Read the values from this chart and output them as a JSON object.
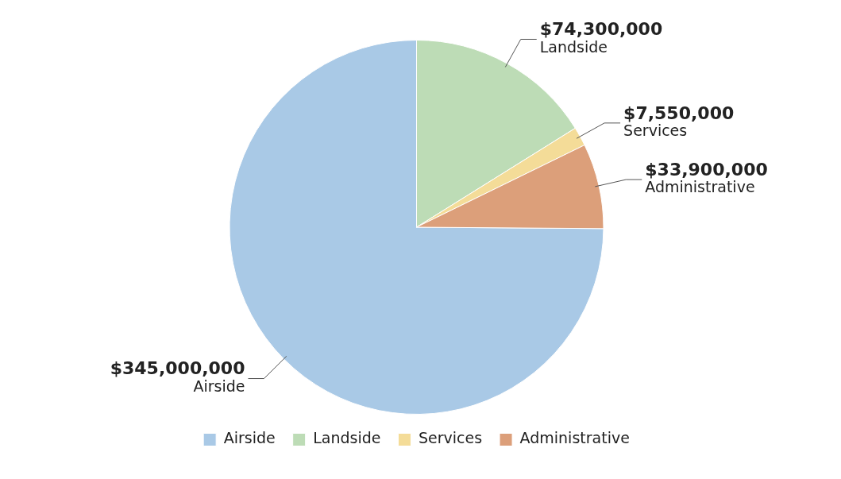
{
  "chart_data": {
    "type": "pie",
    "categories": [
      "Airside",
      "Landside",
      "Services",
      "Administrative"
    ],
    "values": [
      345000000,
      74300000,
      7550000,
      33900000
    ],
    "colors": [
      "#a9c9e6",
      "#bddcb6",
      "#f4dc98",
      "#dc9f7a"
    ],
    "value_labels": [
      "$345,000,000",
      "$74,300,000",
      "$7,550,000",
      "$33,900,000"
    ],
    "legend": "bottom"
  }
}
